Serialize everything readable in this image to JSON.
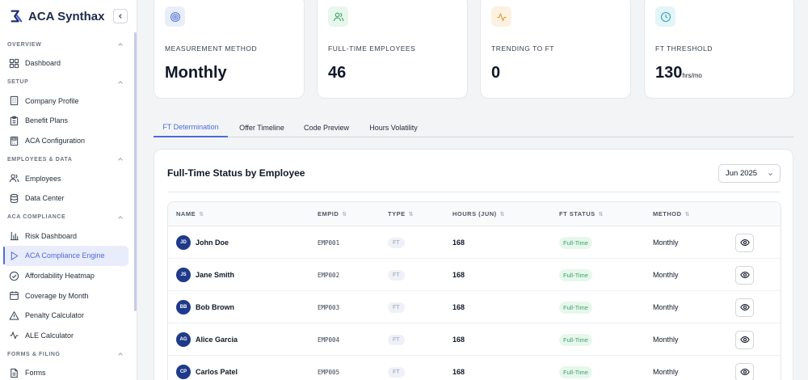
{
  "brand": {
    "name": "ACA Synthax",
    "logo_icon": "sigma-logo-icon"
  },
  "sidebar": {
    "sections": [
      {
        "label": "OVERVIEW",
        "items": [
          {
            "label": "Dashboard",
            "icon": "grid-icon"
          }
        ]
      },
      {
        "label": "SETUP",
        "items": [
          {
            "label": "Company Profile",
            "icon": "building-icon"
          },
          {
            "label": "Benefit Plans",
            "icon": "clipboard-icon"
          },
          {
            "label": "ACA Configuration",
            "icon": "calculator-icon"
          }
        ]
      },
      {
        "label": "EMPLOYEES & DATA",
        "items": [
          {
            "label": "Employees",
            "icon": "users-icon"
          },
          {
            "label": "Data Center",
            "icon": "database-icon"
          }
        ]
      },
      {
        "label": "ACA COMPLIANCE",
        "items": [
          {
            "label": "Risk Dashboard",
            "icon": "bar-chart-icon"
          },
          {
            "label": "ACA Compliance Engine",
            "icon": "play-icon",
            "active": true
          },
          {
            "label": "Affordability Heatmap",
            "icon": "check-circle-icon"
          },
          {
            "label": "Coverage by Month",
            "icon": "calendar-icon"
          },
          {
            "label": "Penalty Calculator",
            "icon": "warning-icon"
          },
          {
            "label": "ALE Calculator",
            "icon": "activity-icon"
          }
        ]
      },
      {
        "label": "FORMS & FILING",
        "items": [
          {
            "label": "Forms",
            "icon": "document-icon"
          }
        ]
      }
    ]
  },
  "stats": [
    {
      "label": "MEASUREMENT METHOD",
      "value": "Monthly",
      "unit": "",
      "icon": "target-icon",
      "color": "#5b7bd5",
      "bg": "#e9eefb"
    },
    {
      "label": "FULL-TIME EMPLOYEES",
      "value": "46",
      "unit": "",
      "icon": "users-icon",
      "color": "#3aa466",
      "bg": "#e7f7ec"
    },
    {
      "label": "TRENDING TO FT",
      "value": "0",
      "unit": "",
      "icon": "activity-icon",
      "color": "#e0942a",
      "bg": "#fdf1e2"
    },
    {
      "label": "FT THRESHOLD",
      "value": "130",
      "unit": "hrs/mo",
      "icon": "clock-icon",
      "color": "#2fa3b8",
      "bg": "#e3f5f8"
    }
  ],
  "tabs": [
    "FT Determination",
    "Offer Timeline",
    "Code Preview",
    "Hours Volatility"
  ],
  "panel": {
    "title": "Full-Time Status by Employee",
    "month_selected": "Jun 2025"
  },
  "table": {
    "headers": [
      "NAME",
      "EMPID",
      "TYPE",
      "HOURS (JUN)",
      "FT STATUS",
      "METHOD"
    ],
    "sort_glyph": "⇅",
    "rows": [
      {
        "initials": "JD",
        "name": "John Doe",
        "empid": "EMP001",
        "type": "FT",
        "hours": "168",
        "status": "Full-Time",
        "method": "Monthly"
      },
      {
        "initials": "JS",
        "name": "Jane Smith",
        "empid": "EMP002",
        "type": "FT",
        "hours": "168",
        "status": "Full-Time",
        "method": "Monthly"
      },
      {
        "initials": "BB",
        "name": "Bob Brown",
        "empid": "EMP003",
        "type": "FT",
        "hours": "168",
        "status": "Full-Time",
        "method": "Monthly"
      },
      {
        "initials": "AG",
        "name": "Alice Garcia",
        "empid": "EMP004",
        "type": "FT",
        "hours": "168",
        "status": "Full-Time",
        "method": "Monthly"
      },
      {
        "initials": "CP",
        "name": "Carlos Patel",
        "empid": "EMP005",
        "type": "FT",
        "hours": "168",
        "status": "Full-Time",
        "method": "Monthly"
      }
    ]
  }
}
